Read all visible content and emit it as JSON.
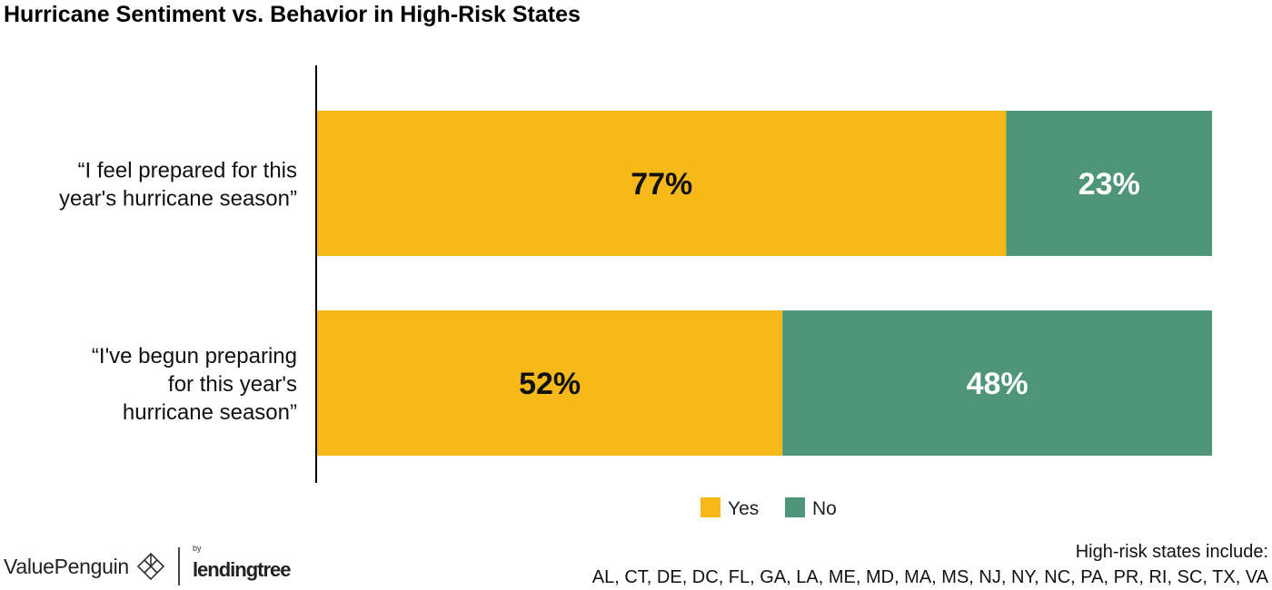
{
  "title": "Hurricane Sentiment vs. Behavior in High-Risk States",
  "colors": {
    "yes": "#F6B919",
    "no": "#4E957A",
    "axis": "#000000",
    "yes_label": "#111111",
    "no_label": "#ffffff"
  },
  "chart_data": {
    "type": "bar",
    "orientation": "horizontal",
    "stacked": true,
    "categories": [
      "“I feel prepared for this year's hurricane season”",
      "“I've begun preparing for this year's hurricane season”"
    ],
    "category_lines": [
      [
        "“I feel prepared for this",
        "year's hurricane season”"
      ],
      [
        "“I've begun preparing",
        "for this year's",
        "hurricane season”"
      ]
    ],
    "series": [
      {
        "name": "Yes",
        "values": [
          77,
          52
        ],
        "labels": [
          "77%",
          "52%"
        ]
      },
      {
        "name": "No",
        "values": [
          23,
          48
        ],
        "labels": [
          "23%",
          "48%"
        ]
      }
    ],
    "xlim": [
      0,
      100
    ],
    "legend": "bottom-center",
    "grid": false
  },
  "brand": {
    "name": "ValuePenguin",
    "partner_prefix": "by",
    "partner_name": "lendingtree",
    "logo_icon": "valuepenguin-logo-icon"
  },
  "footnote": {
    "line1": "High-risk states include:",
    "line2": "AL, CT, DE, DC, FL, GA, LA, ME, MD, MA, MS, NJ, NY, NC, PA, PR, RI, SC, TX, VA"
  }
}
